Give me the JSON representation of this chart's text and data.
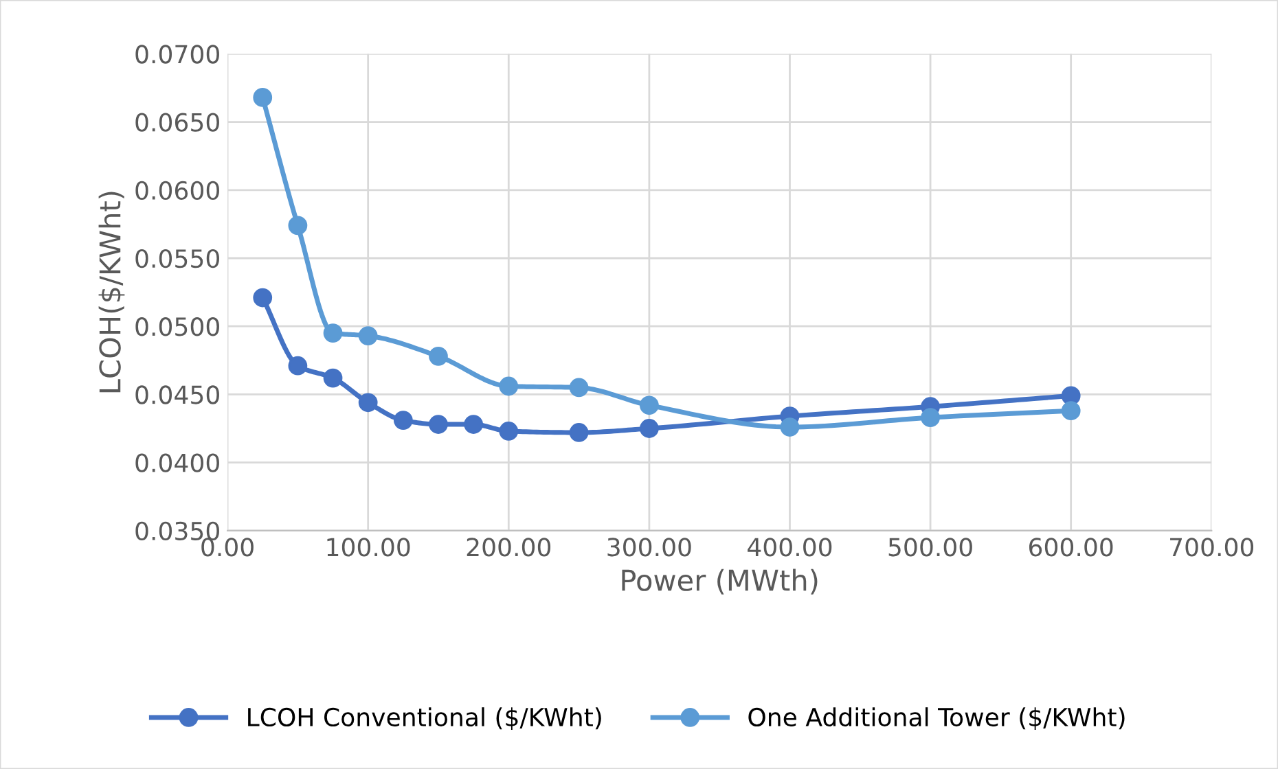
{
  "chart_data": {
    "type": "line",
    "xlabel": "Power (MWth)",
    "ylabel": "LCOH($/KWht)",
    "xlim": [
      0,
      700
    ],
    "xticks": [
      {
        "value": 0,
        "label": "0.00"
      },
      {
        "value": 100,
        "label": "100.00"
      },
      {
        "value": 200,
        "label": "200.00"
      },
      {
        "value": 300,
        "label": "300.00"
      },
      {
        "value": 400,
        "label": "400.00"
      },
      {
        "value": 500,
        "label": "500.00"
      },
      {
        "value": 600,
        "label": "600.00"
      },
      {
        "value": 700,
        "label": "700.00"
      }
    ],
    "ylim": [
      0.035,
      0.07
    ],
    "yticks": [
      {
        "value": 0.035,
        "label": "0.0350"
      },
      {
        "value": 0.04,
        "label": "0.0400"
      },
      {
        "value": 0.045,
        "label": "0.0450"
      },
      {
        "value": 0.05,
        "label": "0.0500"
      },
      {
        "value": 0.055,
        "label": "0.0550"
      },
      {
        "value": 0.06,
        "label": "0.0600"
      },
      {
        "value": 0.065,
        "label": "0.0650"
      },
      {
        "value": 0.07,
        "label": "0.0700"
      }
    ],
    "grid": true,
    "legend": "bottom",
    "marker": "circle",
    "line_style": "solid",
    "series": [
      {
        "name": "LCOH Conventional ($/KWht)",
        "color": "#4472c4",
        "x": [
          25,
          50,
          75,
          100,
          125,
          150,
          175,
          200,
          250,
          300,
          400,
          500,
          600
        ],
        "values": [
          0.0521,
          0.0471,
          0.0462,
          0.0444,
          0.0431,
          0.0428,
          0.0428,
          0.0423,
          0.0422,
          0.0425,
          0.0434,
          0.0441,
          0.0449
        ]
      },
      {
        "name": "One Additional Tower ($/KWht)",
        "color": "#5b9bd5",
        "x": [
          25,
          50,
          75,
          100,
          150,
          200,
          250,
          300,
          400,
          500,
          600
        ],
        "values": [
          0.0668,
          0.0574,
          0.0495,
          0.0493,
          0.0478,
          0.0456,
          0.0455,
          0.0442,
          0.0426,
          0.0433,
          0.0438
        ]
      }
    ]
  }
}
